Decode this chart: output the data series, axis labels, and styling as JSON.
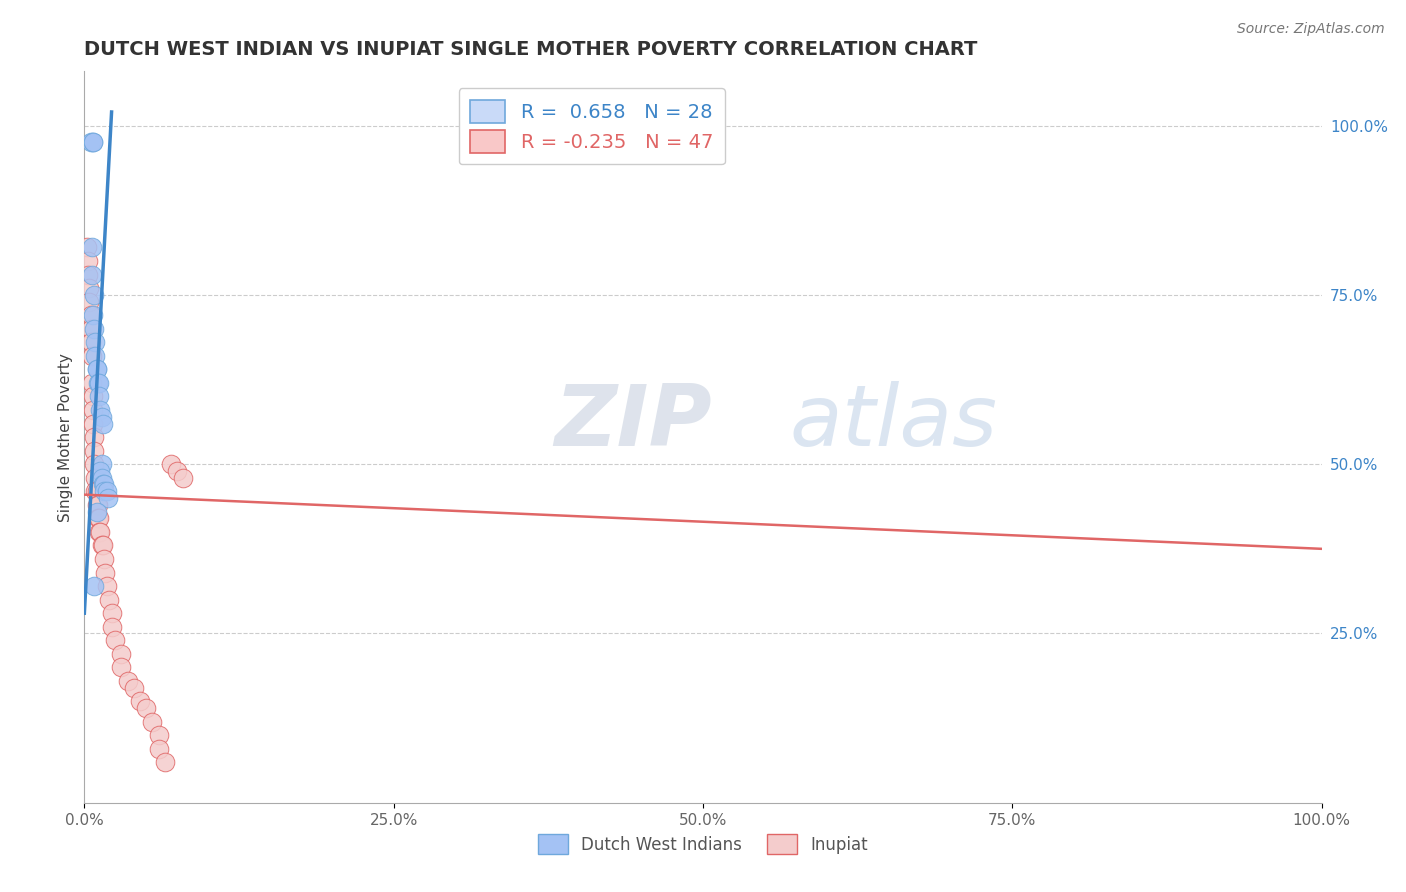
{
  "title": "DUTCH WEST INDIAN VS INUPIAT SINGLE MOTHER POVERTY CORRELATION CHART",
  "source": "Source: ZipAtlas.com",
  "ylabel": "Single Mother Poverty",
  "watermark_zip": "ZIP",
  "watermark_atlas": "atlas",
  "background_color": "#ffffff",
  "xlim": [
    0.0,
    1.0
  ],
  "xtick_labels": [
    "0.0%",
    "",
    "25.0%",
    "",
    "50.0%",
    "",
    "75.0%",
    "",
    "100.0%"
  ],
  "xtick_values": [
    0.0,
    0.125,
    0.25,
    0.375,
    0.5,
    0.625,
    0.75,
    0.875,
    1.0
  ],
  "ytick_labels": [
    "25.0%",
    "50.0%",
    "75.0%",
    "100.0%"
  ],
  "ytick_values": [
    0.25,
    0.5,
    0.75,
    1.0
  ],
  "series": [
    {
      "name": "Dutch West Indians",
      "color": "#a4c2f4",
      "edge_color": "#6fa8dc",
      "R": 0.658,
      "N": 28,
      "x": [
        0.005,
        0.007,
        0.007,
        0.006,
        0.006,
        0.008,
        0.007,
        0.008,
        0.009,
        0.009,
        0.01,
        0.01,
        0.011,
        0.012,
        0.012,
        0.013,
        0.014,
        0.015,
        0.014,
        0.013,
        0.014,
        0.015,
        0.016,
        0.016,
        0.018,
        0.019,
        0.01,
        0.008
      ],
      "y": [
        0.975,
        0.975,
        0.975,
        0.82,
        0.78,
        0.75,
        0.72,
        0.7,
        0.68,
        0.66,
        0.64,
        0.64,
        0.62,
        0.62,
        0.6,
        0.58,
        0.57,
        0.56,
        0.5,
        0.49,
        0.48,
        0.47,
        0.47,
        0.46,
        0.46,
        0.45,
        0.43,
        0.32
      ]
    },
    {
      "name": "Inupiat",
      "color": "#f4cccc",
      "edge_color": "#e06666",
      "R": -0.235,
      "N": 47,
      "x": [
        0.002,
        0.003,
        0.003,
        0.004,
        0.004,
        0.005,
        0.005,
        0.005,
        0.006,
        0.006,
        0.007,
        0.007,
        0.007,
        0.008,
        0.008,
        0.008,
        0.009,
        0.009,
        0.01,
        0.01,
        0.011,
        0.011,
        0.012,
        0.012,
        0.013,
        0.014,
        0.015,
        0.016,
        0.017,
        0.018,
        0.02,
        0.022,
        0.022,
        0.025,
        0.03,
        0.03,
        0.035,
        0.04,
        0.045,
        0.05,
        0.055,
        0.06,
        0.06,
        0.065,
        0.07,
        0.075,
        0.08
      ],
      "y": [
        0.82,
        0.8,
        0.78,
        0.76,
        0.74,
        0.72,
        0.7,
        0.68,
        0.66,
        0.62,
        0.6,
        0.58,
        0.56,
        0.54,
        0.52,
        0.5,
        0.48,
        0.46,
        0.46,
        0.44,
        0.44,
        0.42,
        0.42,
        0.4,
        0.4,
        0.38,
        0.38,
        0.36,
        0.34,
        0.32,
        0.3,
        0.28,
        0.26,
        0.24,
        0.22,
        0.2,
        0.18,
        0.17,
        0.15,
        0.14,
        0.12,
        0.1,
        0.08,
        0.06,
        0.5,
        0.49,
        0.48
      ]
    }
  ],
  "regression_lines": [
    {
      "color": "#3d85c8",
      "linewidth": 2.5,
      "x_start": 0.0,
      "x_end": 0.022,
      "y_start": 0.28,
      "y_end": 1.02
    },
    {
      "color": "#e06666",
      "linewidth": 1.8,
      "x_start": 0.0,
      "x_end": 1.0,
      "y_start": 0.455,
      "y_end": 0.375
    }
  ],
  "legend_blue_R": "0.658",
  "legend_blue_N": "28",
  "legend_pink_R": "-0.235",
  "legend_pink_N": "47",
  "title_fontsize": 14,
  "axis_label_fontsize": 11,
  "tick_fontsize": 11,
  "right_tick_color": "#3d85c8"
}
